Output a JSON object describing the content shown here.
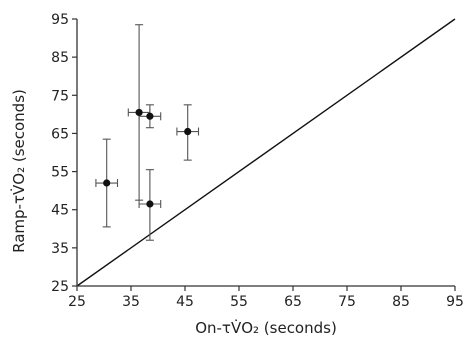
{
  "chart_data": {
    "type": "scatter",
    "xlabel": "On-τV̇O₂ (seconds)",
    "ylabel": "Ramp-τV̇O₂ (seconds)",
    "xlim": [
      25,
      95
    ],
    "ylim": [
      25,
      95
    ],
    "xticks": [
      25,
      35,
      45,
      55,
      65,
      75,
      85,
      95
    ],
    "yticks": [
      25,
      35,
      45,
      55,
      65,
      75,
      85,
      95
    ],
    "grid": false,
    "identity_line": {
      "from": [
        25,
        25
      ],
      "to": [
        95,
        95
      ]
    },
    "points": [
      {
        "x": 30.5,
        "y": 52.0,
        "x_err": 2.0,
        "y_low": 40.5,
        "y_high": 63.5
      },
      {
        "x": 36.5,
        "y": 70.5,
        "x_err": 2.0,
        "y_low": 47.5,
        "y_high": 93.5
      },
      {
        "x": 38.5,
        "y": 69.5,
        "x_err": 2.0,
        "y_low": 66.5,
        "y_high": 72.5
      },
      {
        "x": 38.5,
        "y": 46.5,
        "x_err": 2.0,
        "y_low": 37.0,
        "y_high": 55.5
      },
      {
        "x": 45.5,
        "y": 65.5,
        "x_err": 2.0,
        "y_low": 58.0,
        "y_high": 72.5
      }
    ],
    "colors": {
      "marker": "#111111",
      "axis": "#333333",
      "error_bar": "#555555"
    }
  }
}
